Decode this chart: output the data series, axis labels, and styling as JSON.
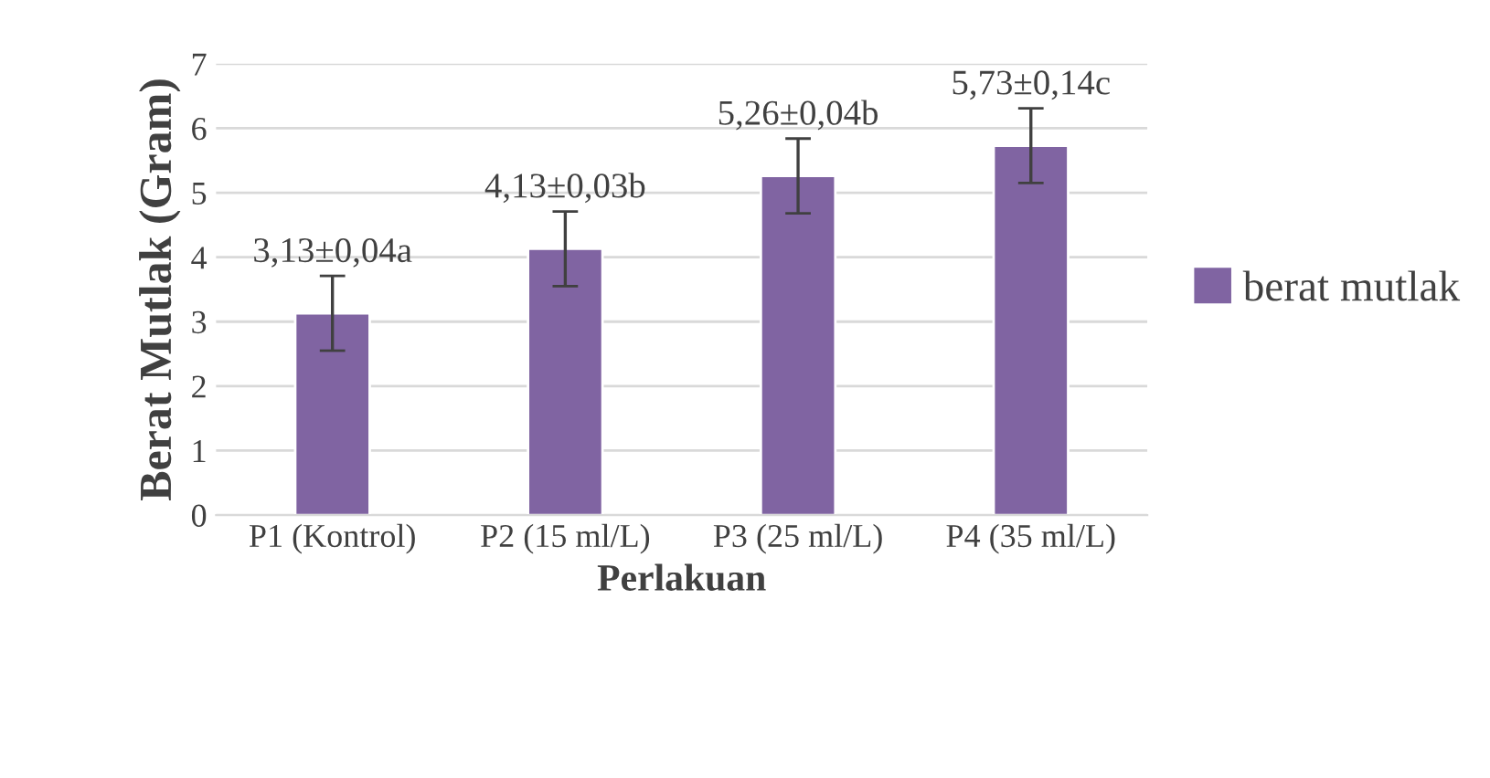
{
  "chart_data": {
    "type": "bar",
    "xlabel": "Perlakuan",
    "ylabel": "Berat Mutlak (Gram)",
    "categories": [
      "P1 (Kontrol)",
      "P2 (15 ml/L)",
      "P3 (25 ml/L)",
      "P4 (35 ml/L)"
    ],
    "series": [
      {
        "name": "berat mutlak",
        "color": "#8064a2",
        "values": [
          3.13,
          4.13,
          5.26,
          5.73
        ],
        "errors": [
          0.58,
          0.58,
          0.58,
          0.58
        ],
        "value_labels": [
          "3,13±0,04a",
          "4,13±0,03b",
          "5,26±0,04b",
          "5,73±0,14c"
        ]
      }
    ],
    "ylim": [
      0,
      7
    ],
    "yticks": [
      0,
      1,
      2,
      3,
      4,
      5,
      6,
      7
    ],
    "grid": "y",
    "legend": "right"
  }
}
